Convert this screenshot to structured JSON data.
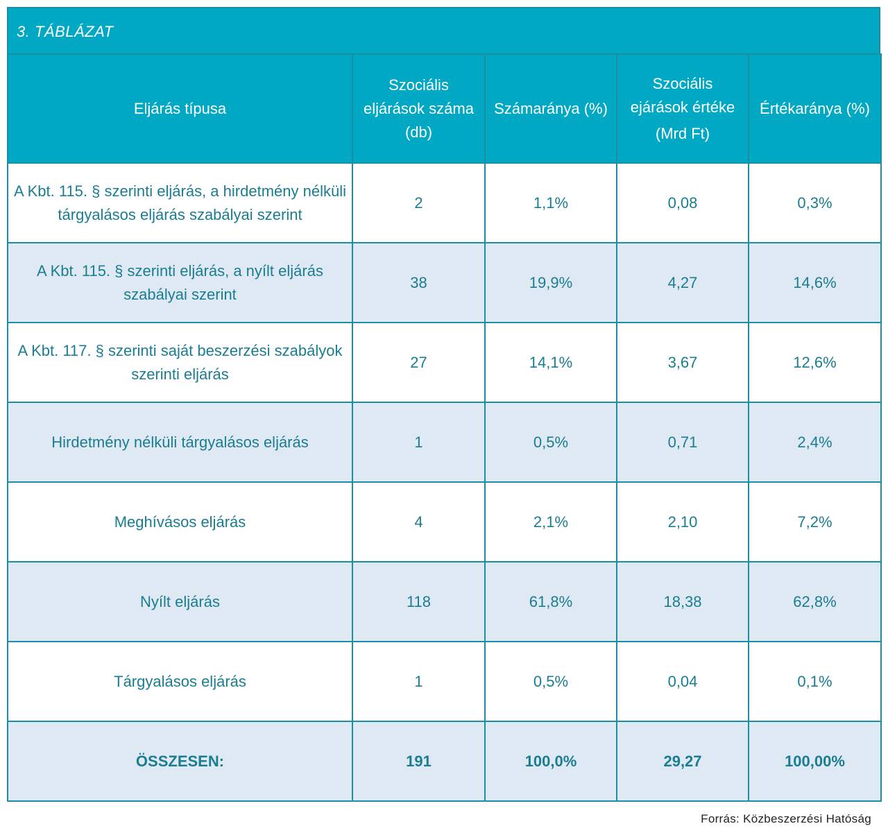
{
  "title": "3. TÁBLÁZAT",
  "headers": {
    "col1": "Eljárás típusa",
    "col2": "Szociális eljárások száma (db)",
    "col3": "Számaránya (%)",
    "col4_main": "Szociális ejárások értéke",
    "col4_unit": "(Mrd Ft)",
    "col5": "Értékaránya (%)"
  },
  "rows": [
    {
      "type": "A Kbt. 115. § szerinti eljárás, a hirdetmény nélküli tárgyalásos eljárás szabályai szerint",
      "count": "2",
      "count_share": "1,1%",
      "value": "0,08",
      "value_share": "0,3%"
    },
    {
      "type": "A Kbt. 115. § szerinti eljárás, a nyílt eljárás szabályai szerint",
      "count": "38",
      "count_share": "19,9%",
      "value": "4,27",
      "value_share": "14,6%"
    },
    {
      "type": "A Kbt. 117. § szerinti saját beszerzési szabályok szerinti eljárás",
      "count": "27",
      "count_share": "14,1%",
      "value": "3,67",
      "value_share": "12,6%"
    },
    {
      "type": "Hirdetmény nélküli tárgyalásos eljárás",
      "count": "1",
      "count_share": "0,5%",
      "value": "0,71",
      "value_share": "2,4%"
    },
    {
      "type": "Meghívásos eljárás",
      "count": "4",
      "count_share": "2,1%",
      "value": "2,10",
      "value_share": "7,2%"
    },
    {
      "type": "Nyílt eljárás",
      "count": "118",
      "count_share": "61,8%",
      "value": "18,38",
      "value_share": "62,8%"
    },
    {
      "type": "Tárgyalásos eljárás",
      "count": "1",
      "count_share": "0,5%",
      "value": "0,04",
      "value_share": "0,1%"
    }
  ],
  "total": {
    "label": "ÖSSZESEN:",
    "count": "191",
    "count_share": "100,0%",
    "value": "29,27",
    "value_share": "100,00%"
  },
  "source": "Forrás: Közbeszerzési Hatóság",
  "colors": {
    "header_bg": "#00a8c4",
    "border": "#1a8fa3",
    "body_text": "#1a7d92",
    "row_tint": "#dfe9f4"
  }
}
